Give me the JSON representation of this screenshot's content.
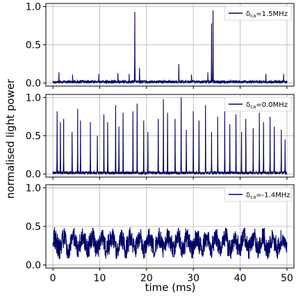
{
  "chart_data": {
    "type": "line",
    "ylabel": "normalised light power",
    "xlabel": "time (ms)",
    "xlim": [
      -1.5,
      51.5
    ],
    "ylim": [
      -0.04,
      1.04
    ],
    "x_ticks": [
      "0",
      "10",
      "20",
      "30",
      "40",
      "50"
    ],
    "y_ticks": [
      "0.0",
      "0.5",
      "1.0"
    ],
    "grid": true,
    "line_color": "#000066",
    "panels": [
      {
        "legend": {
          "symbol": "δ",
          "sub": "ca",
          "value": "=1.5MHz"
        },
        "legend_position": "upper right",
        "baseline": 0.015,
        "noise": 0.02,
        "spikes": [
          {
            "x": 17.5,
            "y": 0.93
          },
          {
            "x": 34.2,
            "y": 0.95
          },
          {
            "x": 33.9,
            "y": 0.78
          },
          {
            "x": 1.3,
            "y": 0.14
          },
          {
            "x": 4.2,
            "y": 0.11
          },
          {
            "x": 9.8,
            "y": 0.12
          },
          {
            "x": 13.9,
            "y": 0.13
          },
          {
            "x": 16.3,
            "y": 0.12
          },
          {
            "x": 18.5,
            "y": 0.2
          },
          {
            "x": 26.9,
            "y": 0.25
          },
          {
            "x": 29.6,
            "y": 0.11
          },
          {
            "x": 33.1,
            "y": 0.14
          },
          {
            "x": 45.5,
            "y": 0.12
          },
          {
            "x": 49.3,
            "y": 0.12
          }
        ]
      },
      {
        "legend": {
          "symbol": "δ",
          "sub": "ca",
          "value": "=0.0MHz"
        },
        "legend_position": "upper right",
        "baseline": 0.015,
        "noise": 0.02,
        "spikes": [
          {
            "x": 0.9,
            "y": 0.82
          },
          {
            "x": 1.6,
            "y": 0.68
          },
          {
            "x": 2.3,
            "y": 0.72
          },
          {
            "x": 4.1,
            "y": 0.55
          },
          {
            "x": 5.3,
            "y": 0.85
          },
          {
            "x": 5.9,
            "y": 0.7
          },
          {
            "x": 8.0,
            "y": 0.68
          },
          {
            "x": 9.5,
            "y": 0.5
          },
          {
            "x": 10.9,
            "y": 0.78
          },
          {
            "x": 11.7,
            "y": 0.68
          },
          {
            "x": 13.4,
            "y": 0.9
          },
          {
            "x": 14.1,
            "y": 0.62
          },
          {
            "x": 15.0,
            "y": 0.8
          },
          {
            "x": 17.1,
            "y": 0.82
          },
          {
            "x": 18.0,
            "y": 0.92
          },
          {
            "x": 19.4,
            "y": 0.7
          },
          {
            "x": 20.3,
            "y": 0.55
          },
          {
            "x": 22.5,
            "y": 0.72
          },
          {
            "x": 23.6,
            "y": 0.98
          },
          {
            "x": 24.5,
            "y": 0.8
          },
          {
            "x": 26.1,
            "y": 0.72
          },
          {
            "x": 27.4,
            "y": 1.0
          },
          {
            "x": 28.5,
            "y": 0.58
          },
          {
            "x": 30.0,
            "y": 0.82
          },
          {
            "x": 31.2,
            "y": 0.7
          },
          {
            "x": 32.6,
            "y": 0.9
          },
          {
            "x": 33.9,
            "y": 0.55
          },
          {
            "x": 35.2,
            "y": 0.75
          },
          {
            "x": 36.7,
            "y": 0.82
          },
          {
            "x": 37.8,
            "y": 0.65
          },
          {
            "x": 39.1,
            "y": 0.78
          },
          {
            "x": 40.3,
            "y": 0.55
          },
          {
            "x": 41.2,
            "y": 0.72
          },
          {
            "x": 42.8,
            "y": 0.6
          },
          {
            "x": 44.1,
            "y": 0.8
          },
          {
            "x": 45.0,
            "y": 0.68
          },
          {
            "x": 46.4,
            "y": 0.75
          },
          {
            "x": 47.3,
            "y": 0.62
          },
          {
            "x": 48.8,
            "y": 0.58
          },
          {
            "x": 49.6,
            "y": 0.45
          }
        ]
      },
      {
        "legend": {
          "symbol": "δ",
          "sub": "ca",
          "value": "=-1.4MHz"
        },
        "legend_position": "upper right",
        "baseline": 0.28,
        "noise": 0.13,
        "range": [
          0.02,
          0.68
        ],
        "spikes": []
      }
    ]
  }
}
